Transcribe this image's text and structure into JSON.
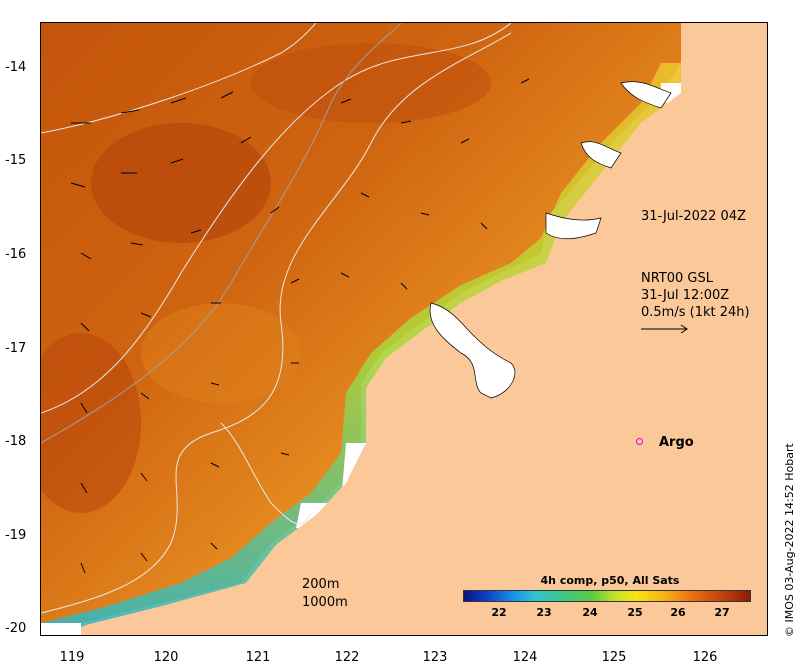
{
  "y_ticks": [
    "-14",
    "-15",
    "-16",
    "-17",
    "-18",
    "-19",
    "-20"
  ],
  "x_ticks": [
    "119",
    "120",
    "121",
    "122",
    "123",
    "124",
    "125",
    "126"
  ],
  "annotations": {
    "timestamp": "31-Jul-2022 04Z",
    "current_model": "NRT00 GSL",
    "current_time": "31-Jul 12:00Z",
    "current_scale": "0.5m/s (1kt 24h)",
    "argo": "Argo",
    "contour_200": "200m",
    "contour_1000": "1000m"
  },
  "colorbar": {
    "title": "4h comp, p50, All Sats",
    "ticks": [
      "22",
      "23",
      "24",
      "25",
      "26",
      "27"
    ]
  },
  "credit": "© IMOS 03-Aug-2022 14:52 Hobart",
  "colors": {
    "land": "#fbc89a",
    "argo": "#e000e0",
    "contour": "#e8e8e8"
  }
}
